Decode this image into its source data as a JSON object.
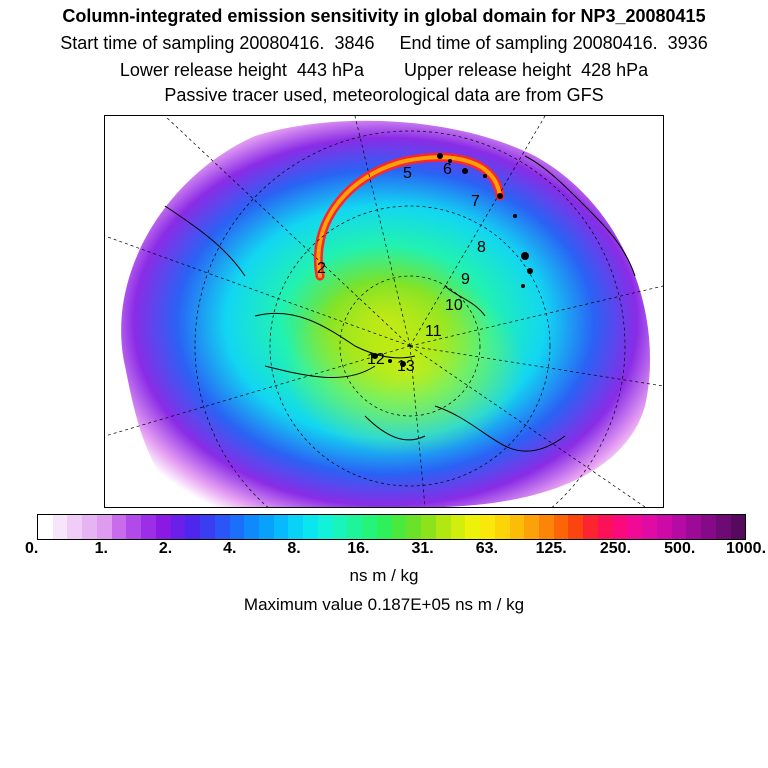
{
  "header": {
    "title": "Column-integrated emission sensitivity in global domain for NP3_20080415",
    "sampling": "Start time of sampling 20080416.  3846     End time of sampling 20080416.  3936",
    "release": "Lower release height  443 hPa        Upper release height  428 hPa",
    "note": "Passive tracer used, meteorological data are from GFS"
  },
  "map": {
    "projection": "polar-stereographic",
    "labels": [
      "2",
      "5",
      "6",
      "7",
      "8",
      "9",
      "10",
      "11",
      "12",
      "13"
    ]
  },
  "colorbar": {
    "tick_labels": [
      "0.",
      "1.",
      "2.",
      "4.",
      "8.",
      "16.",
      "31.",
      "63.",
      "125.",
      "250.",
      "500.",
      "1000."
    ],
    "colors": [
      "#ffffff",
      "#f7e6fb",
      "#efcdf7",
      "#e7b4f3",
      "#df9bef",
      "#c86cec",
      "#b24ae9",
      "#9b2ee6",
      "#8a1ae3",
      "#6a20e8",
      "#4f26ee",
      "#3a3ef3",
      "#2a56f7",
      "#1a70fa",
      "#0e8afc",
      "#08a2fd",
      "#06bafd",
      "#08d2f6",
      "#0ae6ee",
      "#12f2d8",
      "#18f4ba",
      "#1ef49a",
      "#24f47a",
      "#2ef05a",
      "#4aea3c",
      "#6ae22a",
      "#8ee21c",
      "#b2e812",
      "#d2ee0c",
      "#ecf20a",
      "#fae80a",
      "#fcd408",
      "#fcbc08",
      "#fca208",
      "#fc8408",
      "#fc6408",
      "#fc4410",
      "#fc2430",
      "#fc1058",
      "#fa0a7c",
      "#f00a96",
      "#e00aa4",
      "#cc0aa8",
      "#b60aa4",
      "#9e0a98",
      "#860a88",
      "#6e0a74",
      "#560a5e"
    ],
    "units": "ns m / kg",
    "maximum": "Maximum value  0.187E+05 ns m / kg"
  }
}
